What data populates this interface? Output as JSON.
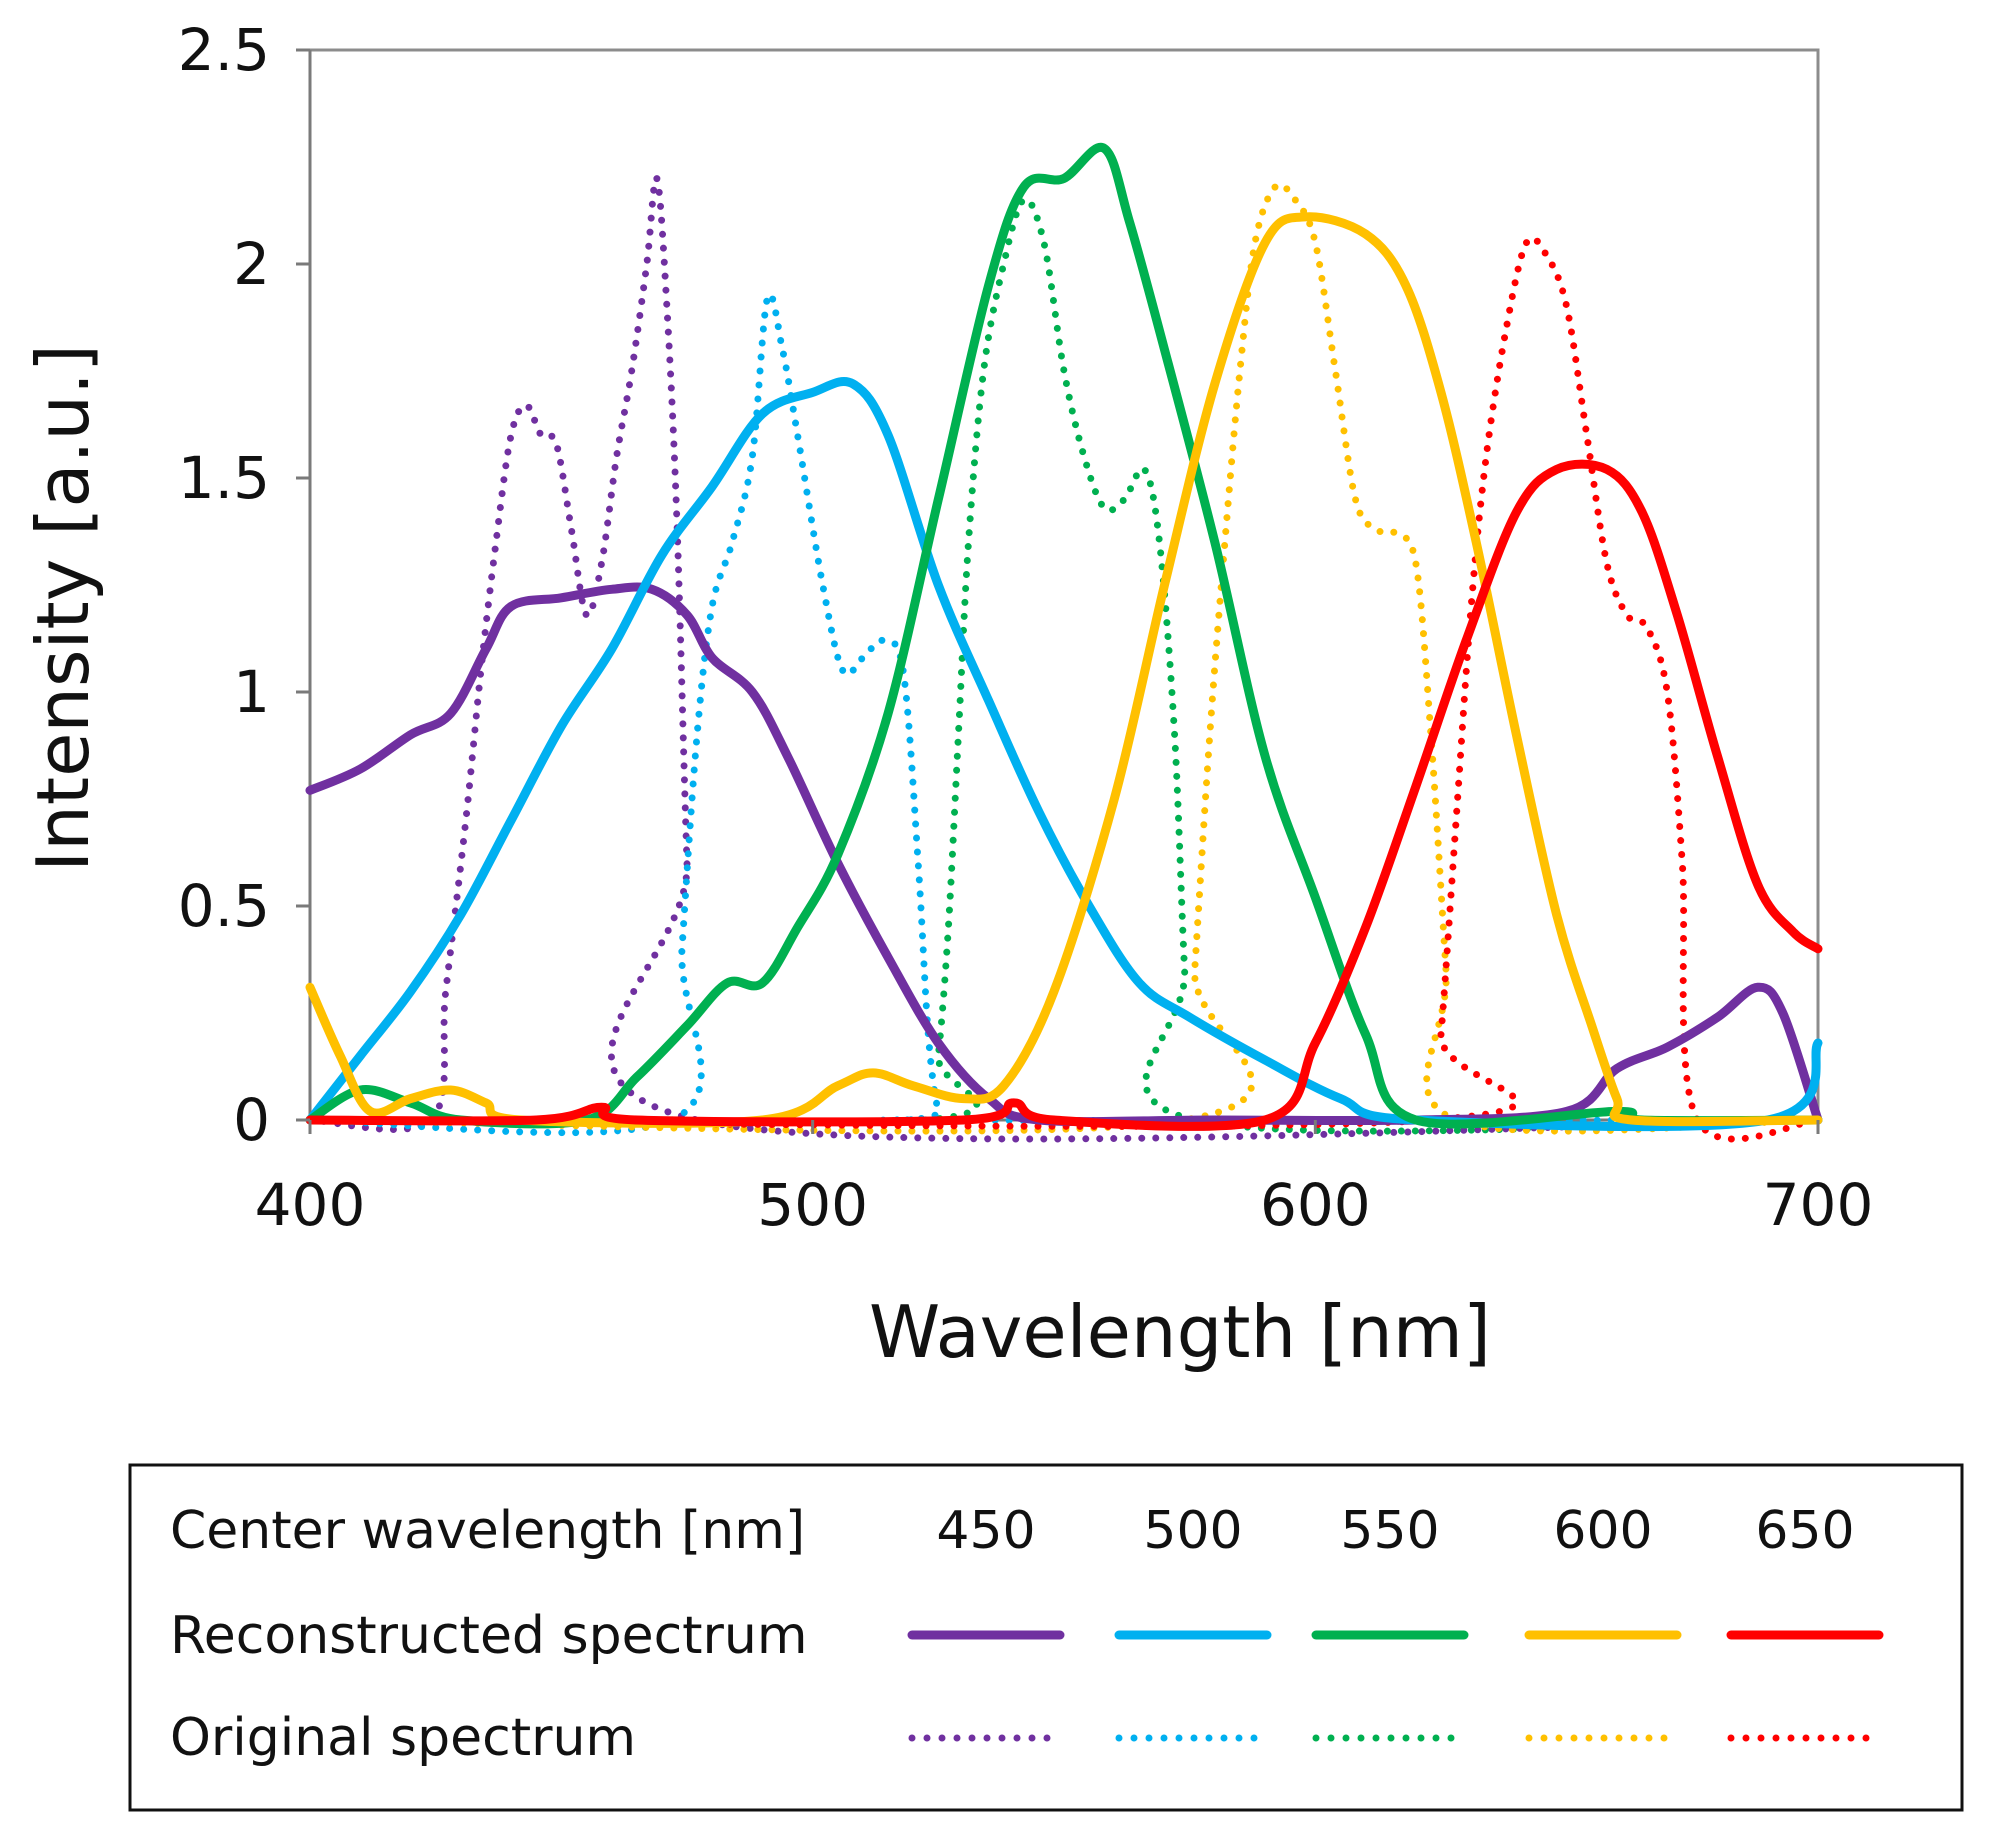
{
  "chart_data": {
    "type": "line",
    "xlabel": "Wavelength [nm]",
    "ylabel": "Intensity [a.u.]",
    "xlim": [
      400,
      700
    ],
    "ylim": [
      0,
      2.5
    ],
    "x_ticks": [
      "400",
      "500",
      "600",
      "700"
    ],
    "y_ticks": [
      "0",
      "0.5",
      "1",
      "1.5",
      "2",
      "2.5"
    ],
    "x_tick_values": [
      400,
      500,
      600,
      700
    ],
    "y_tick_values": [
      0,
      0.5,
      1,
      1.5,
      2,
      2.5
    ],
    "grid": false,
    "legend": {
      "placement": "bottom",
      "header_label": "Center wavelength [nm]",
      "reconstructed_label": "Reconstructed spectrum",
      "original_label": "Original spectrum",
      "centers": [
        "450",
        "500",
        "550",
        "600",
        "650"
      ]
    },
    "series": [
      {
        "center": "450",
        "color": "#7030A0",
        "reconstructed": [
          [
            400,
            0.77
          ],
          [
            410,
            0.82
          ],
          [
            420,
            0.9
          ],
          [
            428,
            0.95
          ],
          [
            435,
            1.1
          ],
          [
            440,
            1.2
          ],
          [
            450,
            1.22
          ],
          [
            460,
            1.24
          ],
          [
            468,
            1.24
          ],
          [
            475,
            1.18
          ],
          [
            480,
            1.08
          ],
          [
            488,
            1.0
          ],
          [
            495,
            0.85
          ],
          [
            505,
            0.6
          ],
          [
            515,
            0.38
          ],
          [
            525,
            0.18
          ],
          [
            535,
            0.05
          ],
          [
            545,
            0.0
          ],
          [
            580,
            0.0
          ],
          [
            620,
            0.0
          ],
          [
            650,
            0.02
          ],
          [
            660,
            0.12
          ],
          [
            670,
            0.17
          ],
          [
            680,
            0.24
          ],
          [
            688,
            0.31
          ],
          [
            693,
            0.25
          ],
          [
            700,
            0.0
          ]
        ],
        "original": [
          [
            400,
            0.0
          ],
          [
            424,
            0.0
          ],
          [
            427,
            0.3
          ],
          [
            431,
            0.7
          ],
          [
            434,
            1.05
          ],
          [
            437,
            1.35
          ],
          [
            440,
            1.6
          ],
          [
            443,
            1.67
          ],
          [
            446,
            1.6
          ],
          [
            449,
            1.58
          ],
          [
            452,
            1.38
          ],
          [
            455,
            1.18
          ],
          [
            458,
            1.3
          ],
          [
            461,
            1.55
          ],
          [
            464,
            1.75
          ],
          [
            467,
            2.0
          ],
          [
            469,
            2.2
          ],
          [
            471,
            1.9
          ],
          [
            473,
            1.4
          ],
          [
            475,
            0.6
          ],
          [
            477,
            0.0
          ],
          [
            700,
            0.0
          ]
        ]
      },
      {
        "center": "500",
        "color": "#00B0F0",
        "reconstructed": [
          [
            400,
            0.0
          ],
          [
            410,
            0.15
          ],
          [
            420,
            0.3
          ],
          [
            430,
            0.48
          ],
          [
            440,
            0.7
          ],
          [
            450,
            0.92
          ],
          [
            460,
            1.1
          ],
          [
            470,
            1.32
          ],
          [
            480,
            1.48
          ],
          [
            490,
            1.65
          ],
          [
            500,
            1.7
          ],
          [
            508,
            1.72
          ],
          [
            515,
            1.6
          ],
          [
            525,
            1.25
          ],
          [
            535,
            0.98
          ],
          [
            545,
            0.72
          ],
          [
            555,
            0.5
          ],
          [
            565,
            0.32
          ],
          [
            575,
            0.24
          ],
          [
            590,
            0.14
          ],
          [
            605,
            0.05
          ],
          [
            620,
            0.0
          ],
          [
            690,
            0.0
          ],
          [
            700,
            0.18
          ]
        ],
        "original": [
          [
            400,
            0.0
          ],
          [
            472,
            0.0
          ],
          [
            474,
            0.4
          ],
          [
            477,
            0.9
          ],
          [
            480,
            1.2
          ],
          [
            484,
            1.35
          ],
          [
            488,
            1.55
          ],
          [
            491,
            1.92
          ],
          [
            494,
            1.8
          ],
          [
            497,
            1.6
          ],
          [
            502,
            1.25
          ],
          [
            506,
            1.05
          ],
          [
            510,
            1.08
          ],
          [
            514,
            1.12
          ],
          [
            518,
            1.05
          ],
          [
            521,
            0.6
          ],
          [
            523,
            0.2
          ],
          [
            525,
            0.02
          ],
          [
            527,
            0.0
          ],
          [
            700,
            0.0
          ]
        ]
      },
      {
        "center": "550",
        "color": "#00B050",
        "reconstructed": [
          [
            400,
            0.0
          ],
          [
            410,
            0.07
          ],
          [
            420,
            0.04
          ],
          [
            430,
            0.0
          ],
          [
            455,
            0.0
          ],
          [
            465,
            0.1
          ],
          [
            475,
            0.22
          ],
          [
            483,
            0.32
          ],
          [
            490,
            0.32
          ],
          [
            497,
            0.45
          ],
          [
            505,
            0.62
          ],
          [
            515,
            0.95
          ],
          [
            525,
            1.45
          ],
          [
            535,
            1.95
          ],
          [
            542,
            2.18
          ],
          [
            550,
            2.2
          ],
          [
            558,
            2.27
          ],
          [
            563,
            2.1
          ],
          [
            570,
            1.8
          ],
          [
            580,
            1.35
          ],
          [
            590,
            0.85
          ],
          [
            600,
            0.52
          ],
          [
            610,
            0.2
          ],
          [
            620,
            0.0
          ],
          [
            660,
            0.02
          ],
          [
            665,
            0.0
          ],
          [
            700,
            0.0
          ]
        ],
        "original": [
          [
            400,
            0.0
          ],
          [
            523,
            0.0
          ],
          [
            525,
            0.15
          ],
          [
            527,
            0.45
          ],
          [
            529,
            0.9
          ],
          [
            531,
            1.35
          ],
          [
            534,
            1.75
          ],
          [
            538,
            2.0
          ],
          [
            542,
            2.15
          ],
          [
            546,
            2.05
          ],
          [
            550,
            1.75
          ],
          [
            554,
            1.55
          ],
          [
            558,
            1.43
          ],
          [
            562,
            1.45
          ],
          [
            566,
            1.52
          ],
          [
            569,
            1.35
          ],
          [
            572,
            0.9
          ],
          [
            574,
            0.35
          ],
          [
            576,
            0.0
          ],
          [
            700,
            0.0
          ]
        ]
      },
      {
        "center": "600",
        "color": "#FFC000",
        "reconstructed": [
          [
            400,
            0.31
          ],
          [
            406,
            0.15
          ],
          [
            412,
            0.02
          ],
          [
            420,
            0.05
          ],
          [
            428,
            0.07
          ],
          [
            435,
            0.04
          ],
          [
            442,
            0.0
          ],
          [
            490,
            0.0
          ],
          [
            505,
            0.08
          ],
          [
            512,
            0.11
          ],
          [
            520,
            0.08
          ],
          [
            530,
            0.05
          ],
          [
            538,
            0.08
          ],
          [
            548,
            0.3
          ],
          [
            560,
            0.75
          ],
          [
            570,
            1.25
          ],
          [
            580,
            1.72
          ],
          [
            590,
            2.05
          ],
          [
            598,
            2.11
          ],
          [
            610,
            2.07
          ],
          [
            618,
            1.95
          ],
          [
            625,
            1.7
          ],
          [
            632,
            1.35
          ],
          [
            640,
            0.9
          ],
          [
            648,
            0.48
          ],
          [
            655,
            0.22
          ],
          [
            660,
            0.05
          ],
          [
            663,
            0.0
          ],
          [
            700,
            0.0
          ]
        ],
        "original": [
          [
            400,
            0.0
          ],
          [
            574,
            0.0
          ],
          [
            576,
            0.35
          ],
          [
            579,
            0.9
          ],
          [
            582,
            1.35
          ],
          [
            585,
            1.75
          ],
          [
            588,
            2.05
          ],
          [
            592,
            2.18
          ],
          [
            596,
            2.15
          ],
          [
            600,
            2.05
          ],
          [
            604,
            1.75
          ],
          [
            608,
            1.45
          ],
          [
            612,
            1.38
          ],
          [
            616,
            1.37
          ],
          [
            620,
            1.3
          ],
          [
            623,
            0.9
          ],
          [
            626,
            0.35
          ],
          [
            628,
            0.0
          ],
          [
            700,
            0.0
          ]
        ]
      },
      {
        "center": "650",
        "color": "#FF0000",
        "reconstructed": [
          [
            400,
            0.0
          ],
          [
            445,
            0.0
          ],
          [
            458,
            0.03
          ],
          [
            465,
            0.0
          ],
          [
            530,
            0.0
          ],
          [
            540,
            0.04
          ],
          [
            548,
            0.0
          ],
          [
            590,
            0.0
          ],
          [
            600,
            0.18
          ],
          [
            610,
            0.45
          ],
          [
            620,
            0.78
          ],
          [
            630,
            1.12
          ],
          [
            640,
            1.42
          ],
          [
            648,
            1.52
          ],
          [
            658,
            1.52
          ],
          [
            665,
            1.42
          ],
          [
            672,
            1.18
          ],
          [
            680,
            0.85
          ],
          [
            688,
            0.55
          ],
          [
            695,
            0.44
          ],
          [
            700,
            0.4
          ]
        ],
        "original": [
          [
            400,
            0.0
          ],
          [
            623,
            0.0
          ],
          [
            625,
            0.2
          ],
          [
            628,
            0.7
          ],
          [
            631,
            1.2
          ],
          [
            634,
            1.55
          ],
          [
            638,
            1.85
          ],
          [
            642,
            2.05
          ],
          [
            646,
            2.02
          ],
          [
            650,
            1.9
          ],
          [
            654,
            1.6
          ],
          [
            658,
            1.3
          ],
          [
            662,
            1.18
          ],
          [
            666,
            1.15
          ],
          [
            670,
            1.0
          ],
          [
            673,
            0.6
          ],
          [
            676,
            0.0
          ],
          [
            700,
            0.0
          ]
        ]
      }
    ]
  }
}
